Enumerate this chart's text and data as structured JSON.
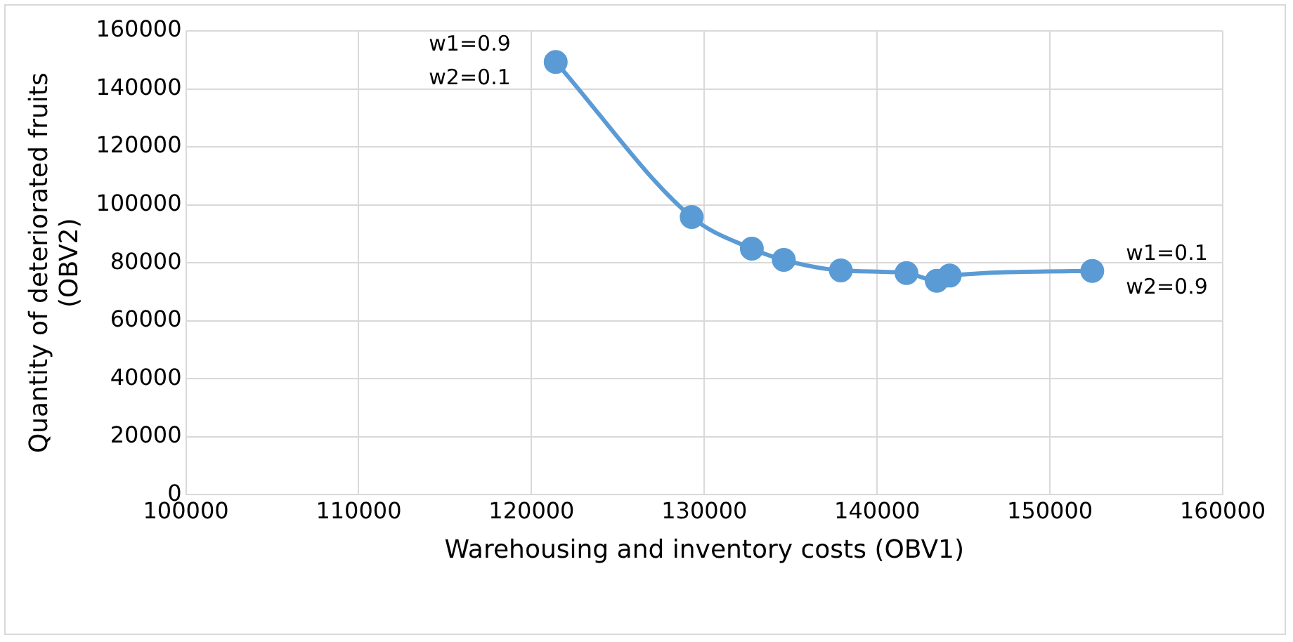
{
  "chart_data": {
    "type": "line",
    "xlabel": "Warehousing and inventory costs (OBV1)",
    "ylabel": "Quantity of deteriorated fruits\n(OBV2)",
    "series": [
      {
        "color": "#5b9bd5",
        "x": [
          121400,
          129270,
          132750,
          134600,
          137900,
          141700,
          143450,
          144200,
          152450
        ],
        "values": [
          149300,
          95800,
          84900,
          81000,
          77400,
          76500,
          73800,
          75600,
          77200
        ]
      }
    ],
    "xlim": [
      100000,
      160000
    ],
    "xticks": [
      100000,
      110000,
      120000,
      130000,
      140000,
      150000,
      160000
    ],
    "ylim": [
      0,
      160000
    ],
    "yticks": [
      0,
      20000,
      40000,
      60000,
      80000,
      100000,
      120000,
      140000,
      160000
    ],
    "grid": true,
    "legend": false,
    "marker": "circle",
    "line_style": "solid",
    "annotations": [
      {
        "text": "w1=0.9\nw2=0.1",
        "x": 121400,
        "y": 149300
      },
      {
        "text": "w1=0.1\nw2=0.9",
        "x": 152450,
        "y": 77200
      }
    ]
  }
}
